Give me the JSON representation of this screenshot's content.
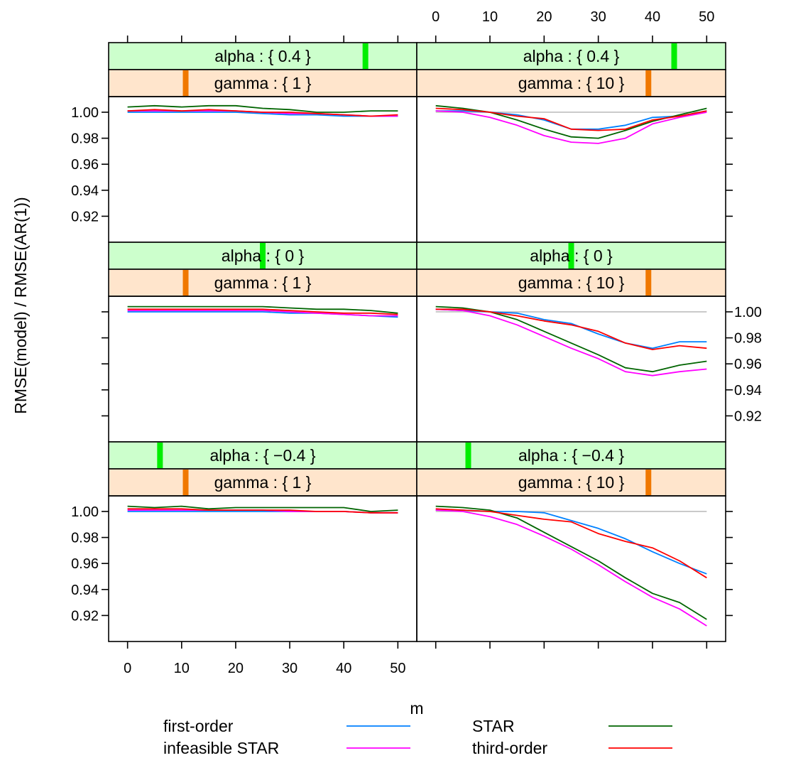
{
  "chart_data": {
    "type": "line",
    "xlabel": "m",
    "ylabel": "RMSE(model) / RMSE(AR(1))",
    "xlim": [
      -3.5,
      53.5
    ],
    "ylim": [
      0.9,
      1.012
    ],
    "x_ticks": [
      0,
      10,
      20,
      30,
      40,
      50
    ],
    "x_tick_labels": [
      "0",
      "10",
      "20",
      "30",
      "40",
      "50"
    ],
    "y_ticks": [
      0.92,
      0.94,
      0.96,
      0.98,
      1.0
    ],
    "y_tick_labels": [
      "0.92",
      "0.94",
      "0.96",
      "0.98",
      "1.00"
    ],
    "reference_line": 1.0,
    "x": [
      0,
      5,
      10,
      15,
      20,
      25,
      30,
      35,
      40,
      45,
      50
    ],
    "legend_position": "bottom",
    "colors": {
      "first-order": "#0080ff",
      "infeasible STAR": "#ff00ff",
      "STAR": "#006400",
      "third-order": "#ff0000",
      "reference": "#bebebe",
      "strip_alpha": "#ccffcc",
      "strip_gamma": "#ffe5cc",
      "alpha_marker": "#00ee00",
      "gamma_marker": "#f07800"
    },
    "legend": [
      {
        "name": "first-order",
        "column": 0,
        "row": 0
      },
      {
        "name": "infeasible STAR",
        "column": 0,
        "row": 1
      },
      {
        "name": "STAR",
        "column": 1,
        "row": 0
      },
      {
        "name": "third-order",
        "column": 1,
        "row": 1
      }
    ],
    "panels": [
      {
        "row": 0,
        "col": 0,
        "alpha_label": "alpha : { 0.4 }",
        "alpha_level": 0.4,
        "gamma_label": "gamma : { 1 }",
        "gamma_level": 1,
        "series": [
          {
            "name": "first-order",
            "values": [
              1.0,
              1.0,
              1.0,
              1.0,
              1.0,
              0.999,
              0.998,
              0.998,
              0.997,
              0.997,
              0.997
            ]
          },
          {
            "name": "infeasible STAR",
            "values": [
              1.001,
              1.001,
              1.001,
              1.001,
              1.001,
              1.0,
              0.999,
              0.999,
              0.998,
              0.997,
              0.997
            ]
          },
          {
            "name": "STAR",
            "values": [
              1.004,
              1.005,
              1.004,
              1.005,
              1.005,
              1.003,
              1.002,
              1.0,
              1.0,
              1.001,
              1.001
            ]
          },
          {
            "name": "third-order",
            "values": [
              1.001,
              1.002,
              1.001,
              1.002,
              1.001,
              1.0,
              1.0,
              0.999,
              0.998,
              0.997,
              0.998
            ]
          }
        ]
      },
      {
        "row": 0,
        "col": 1,
        "alpha_label": "alpha : { 0.4 }",
        "alpha_level": 0.4,
        "gamma_label": "gamma : { 10 }",
        "gamma_level": 10,
        "series": [
          {
            "name": "first-order",
            "values": [
              1.001,
              1.001,
              1.0,
              0.998,
              0.994,
              0.987,
              0.987,
              0.99,
              0.996,
              0.997,
              1.001
            ]
          },
          {
            "name": "infeasible STAR",
            "values": [
              1.001,
              1.0,
              0.996,
              0.99,
              0.982,
              0.977,
              0.976,
              0.98,
              0.991,
              0.996,
              1.0
            ]
          },
          {
            "name": "STAR",
            "values": [
              1.005,
              1.003,
              1.0,
              0.994,
              0.987,
              0.981,
              0.98,
              0.986,
              0.993,
              0.998,
              1.003
            ]
          },
          {
            "name": "third-order",
            "values": [
              1.003,
              1.002,
              1.0,
              0.997,
              0.995,
              0.987,
              0.986,
              0.987,
              0.994,
              0.997,
              1.001
            ]
          }
        ]
      },
      {
        "row": 1,
        "col": 0,
        "alpha_label": "alpha : { 0 }",
        "alpha_level": 0,
        "gamma_label": "gamma : { 1 }",
        "gamma_level": 1,
        "series": [
          {
            "name": "first-order",
            "values": [
              1.0,
              1.0,
              1.0,
              1.0,
              1.0,
              1.0,
              0.999,
              0.999,
              0.998,
              0.997,
              0.996
            ]
          },
          {
            "name": "infeasible STAR",
            "values": [
              1.001,
              1.001,
              1.001,
              1.001,
              1.001,
              1.001,
              1.0,
              0.999,
              0.998,
              0.997,
              0.997
            ]
          },
          {
            "name": "STAR",
            "values": [
              1.004,
              1.004,
              1.004,
              1.004,
              1.004,
              1.004,
              1.003,
              1.002,
              1.002,
              1.001,
              0.999
            ]
          },
          {
            "name": "third-order",
            "values": [
              1.002,
              1.002,
              1.002,
              1.002,
              1.002,
              1.002,
              1.001,
              1.0,
              0.999,
              0.999,
              0.998
            ]
          }
        ]
      },
      {
        "row": 1,
        "col": 1,
        "alpha_label": "alpha : { 0 }",
        "alpha_level": 0,
        "gamma_label": "gamma : { 10 }",
        "gamma_level": 10,
        "series": [
          {
            "name": "first-order",
            "values": [
              1.002,
              1.001,
              1.0,
              0.999,
              0.994,
              0.991,
              0.983,
              0.976,
              0.972,
              0.977,
              0.977
            ]
          },
          {
            "name": "infeasible STAR",
            "values": [
              1.002,
              1.001,
              0.997,
              0.99,
              0.981,
              0.972,
              0.964,
              0.954,
              0.951,
              0.954,
              0.956
            ]
          },
          {
            "name": "STAR",
            "values": [
              1.004,
              1.003,
              1.0,
              0.994,
              0.985,
              0.976,
              0.967,
              0.957,
              0.954,
              0.959,
              0.962
            ]
          },
          {
            "name": "third-order",
            "values": [
              1.002,
              1.002,
              1.0,
              0.997,
              0.993,
              0.99,
              0.985,
              0.976,
              0.971,
              0.974,
              0.972
            ]
          }
        ]
      },
      {
        "row": 2,
        "col": 0,
        "alpha_label": "alpha : { −0.4 }",
        "alpha_level": -0.4,
        "gamma_label": "gamma : { 1 }",
        "gamma_level": 1,
        "series": [
          {
            "name": "first-order",
            "values": [
              1.0,
              1.0,
              1.0,
              1.0,
              1.0,
              1.0,
              1.0,
              1.0,
              1.0,
              0.999,
              0.999
            ]
          },
          {
            "name": "infeasible STAR",
            "values": [
              1.001,
              1.001,
              1.001,
              1.001,
              1.001,
              1.001,
              1.0,
              1.0,
              1.0,
              0.999,
              0.999
            ]
          },
          {
            "name": "STAR",
            "values": [
              1.004,
              1.003,
              1.004,
              1.002,
              1.003,
              1.003,
              1.003,
              1.003,
              1.003,
              1.0,
              1.001
            ]
          },
          {
            "name": "third-order",
            "values": [
              1.002,
              1.002,
              1.002,
              1.001,
              1.001,
              1.001,
              1.001,
              1.0,
              1.0,
              0.999,
              0.999
            ]
          }
        ]
      },
      {
        "row": 2,
        "col": 1,
        "alpha_label": "alpha : { −0.4 }",
        "alpha_level": -0.4,
        "gamma_label": "gamma : { 10 }",
        "gamma_level": 10,
        "series": [
          {
            "name": "first-order",
            "values": [
              1.001,
              1.001,
              1.0,
              1.0,
              0.999,
              0.993,
              0.987,
              0.979,
              0.969,
              0.96,
              0.952
            ]
          },
          {
            "name": "infeasible STAR",
            "values": [
              1.001,
              1.0,
              0.996,
              0.99,
              0.981,
              0.971,
              0.959,
              0.946,
              0.934,
              0.925,
              0.912
            ]
          },
          {
            "name": "STAR",
            "values": [
              1.004,
              1.003,
              1.001,
              0.995,
              0.984,
              0.973,
              0.962,
              0.949,
              0.937,
              0.93,
              0.917
            ]
          },
          {
            "name": "third-order",
            "values": [
              1.002,
              1.001,
              1.0,
              0.997,
              0.994,
              0.992,
              0.983,
              0.977,
              0.972,
              0.962,
              0.949
            ]
          }
        ]
      }
    ]
  }
}
